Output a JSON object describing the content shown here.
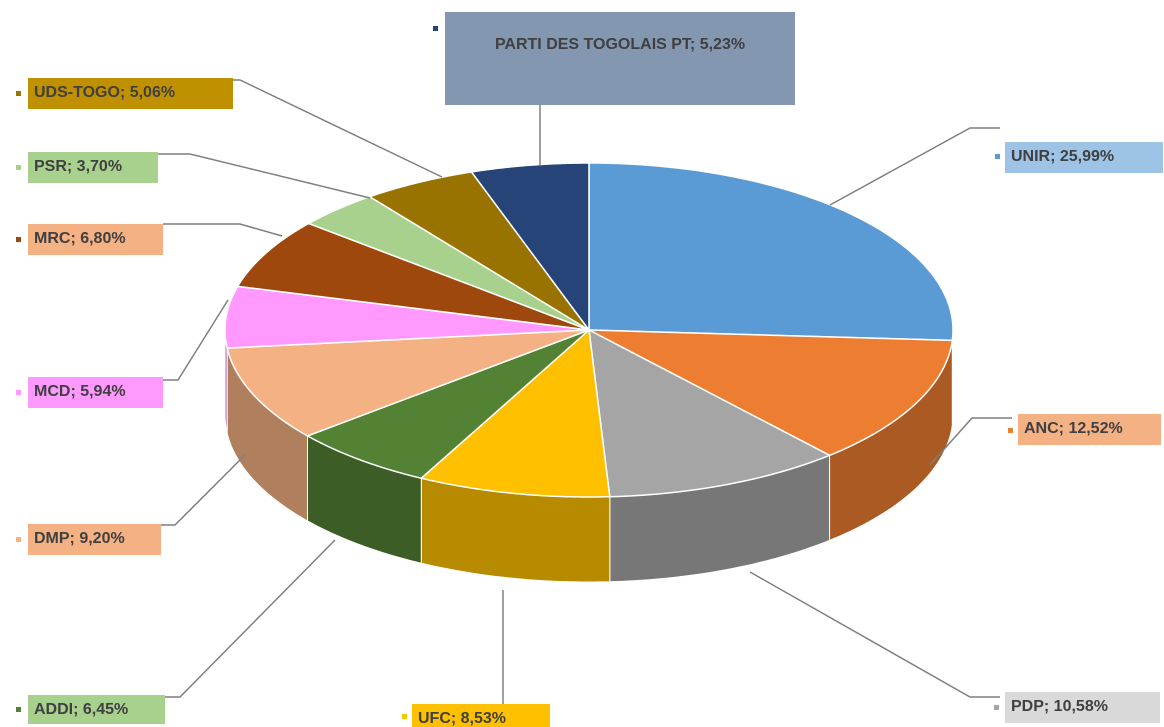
{
  "chart_data": {
    "type": "pie",
    "style": "3d",
    "values": [
      25.99,
      12.52,
      10.58,
      8.53,
      6.45,
      9.2,
      5.94,
      6.8,
      3.7,
      5.06,
      5.23
    ],
    "value_labels": [
      "UNIR; 25,99%",
      "ANC; 12,52%",
      "PDP; 10,58%",
      "UFC; 8,53%",
      "ADDI; 6,45%",
      "DMP; 9,20%",
      "MCD; 5,94%",
      "MRC; 6,80%",
      "PSR; 3,70%",
      "UDS-TOGO; 5,06%",
      "PARTI DES TOGOLAIS PT; 5,23%"
    ],
    "colors": [
      "#5b9bd5",
      "#ed7d31",
      "#a5a5a5",
      "#ffc000",
      "#548235",
      "#f4b183",
      "#ff99ff",
      "#9e480e",
      "#a9d18e",
      "#997300",
      "#264478"
    ],
    "label_colors": [
      "#9dc3e6",
      "#f4b183",
      "#d9d9d9",
      "#ffc000",
      "#a9d18e",
      "#f4b183",
      "#ff99ff",
      "#f4b183",
      "#a9d18e",
      "#bf9000",
      "#8497b0"
    ]
  }
}
